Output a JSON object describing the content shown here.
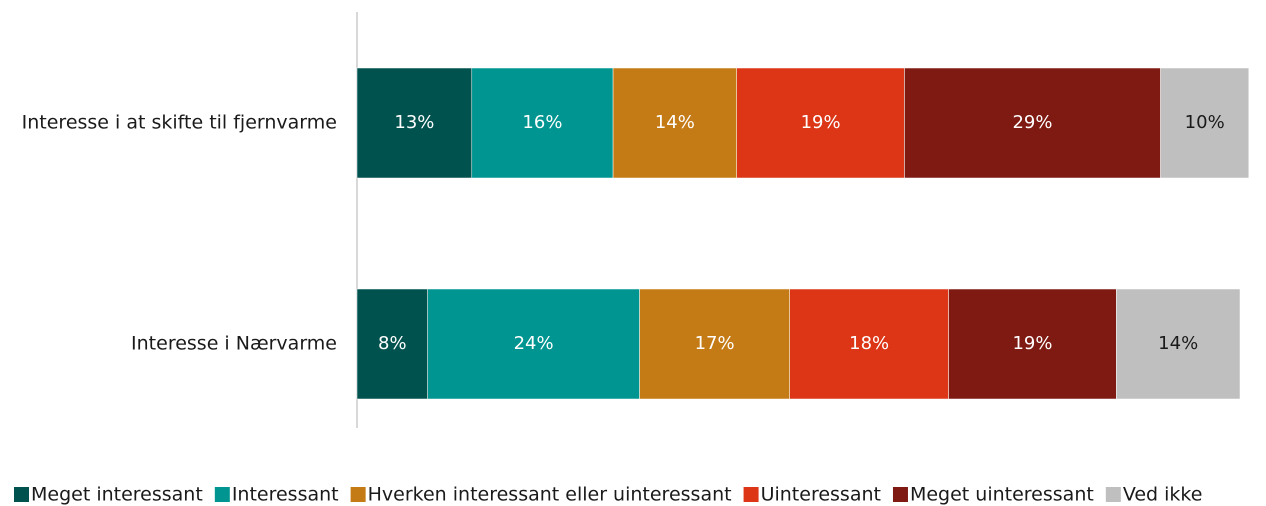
{
  "chart_data": {
    "type": "stacked-barh",
    "categories": [
      "Interesse i at skifte til fjernvarme",
      "Interesse i Nærvarme"
    ],
    "xlim": [
      0,
      100
    ],
    "series": [
      {
        "name": "Meget interessant",
        "color": "#00524f",
        "values": [
          13,
          8
        ],
        "value_labels": [
          "13%",
          "8%"
        ]
      },
      {
        "name": "Interessant",
        "color": "#009590",
        "values": [
          16,
          24
        ],
        "value_labels": [
          "16%",
          "24%"
        ]
      },
      {
        "name": "Hverken interessant eller uinteressant",
        "color": "#c47a15",
        "values": [
          14,
          17
        ],
        "value_labels": [
          "14%",
          "17%"
        ]
      },
      {
        "name": "Uinteressant",
        "color": "#dc3617",
        "values": [
          19,
          18
        ],
        "value_labels": [
          "19%",
          "18%"
        ]
      },
      {
        "name": "Meget uinteressant",
        "color": "#7f1a13",
        "values": [
          29,
          19
        ],
        "value_labels": [
          "29%",
          "19%"
        ]
      },
      {
        "name": "Ved ikke",
        "color": "#bfbfbf",
        "values": [
          10,
          14
        ],
        "value_labels": [
          "10%",
          "14%"
        ]
      }
    ],
    "legend": "bottom"
  }
}
